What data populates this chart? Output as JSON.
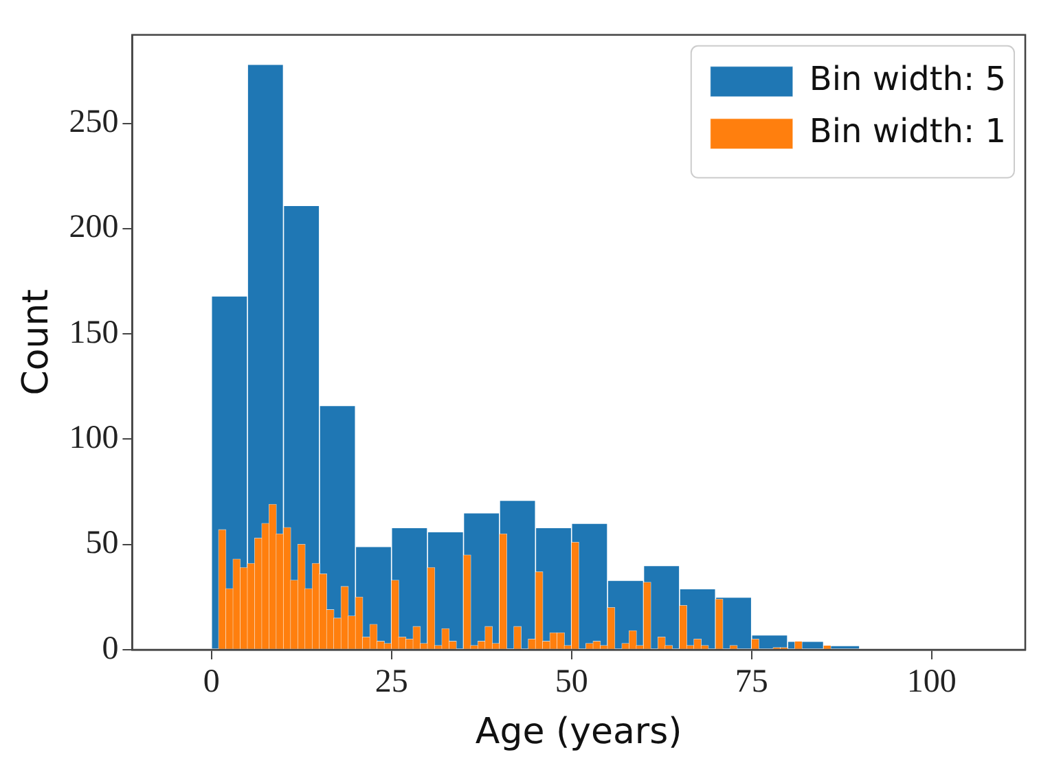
{
  "chart_data": {
    "type": "bar",
    "xlabel": "Age (years)",
    "ylabel": "Count",
    "xlim": [
      -11,
      113
    ],
    "xticks": [
      0,
      25,
      50,
      75,
      100
    ],
    "ylim": [
      0,
      292
    ],
    "yticks": [
      0,
      50,
      100,
      150,
      200,
      250
    ],
    "grid": false,
    "legend": "top right",
    "series": [
      {
        "name": "Bin width: 5",
        "color": "#1f77b4",
        "x": [
          2.5,
          7.5,
          12.5,
          17.5,
          22.5,
          27.5,
          32.5,
          37.5,
          42.5,
          47.5,
          52.5,
          57.5,
          62.5,
          67.5,
          72.5,
          77.5,
          82.5,
          87.5
        ],
        "values": [
          168,
          278,
          211,
          116,
          49,
          58,
          56,
          65,
          71,
          58,
          60,
          33,
          40,
          29,
          25,
          7,
          4,
          2
        ]
      },
      {
        "name": "Bin width: 1",
        "color": "#ff7f0e",
        "x": [
          0.5,
          1.5,
          2.5,
          3.5,
          4.5,
          5.5,
          6.5,
          7.5,
          8.5,
          9.5,
          10.5,
          11.5,
          12.5,
          13.5,
          14.5,
          15.5,
          16.5,
          17.5,
          18.5,
          19.5,
          20.5,
          21.5,
          22.5,
          23.5,
          24.5,
          25.5,
          26.5,
          27.5,
          28.5,
          29.5,
          30.5,
          31.5,
          32.5,
          33.5,
          34.5,
          35.5,
          36.5,
          37.5,
          38.5,
          39.5,
          40.5,
          41.5,
          42.5,
          43.5,
          44.5,
          45.5,
          46.5,
          47.5,
          48.5,
          49.5,
          50.5,
          51.5,
          52.5,
          53.5,
          54.5,
          55.5,
          56.5,
          57.5,
          58.5,
          59.5,
          60.5,
          61.5,
          62.5,
          63.5,
          64.5,
          65.5,
          66.5,
          67.5,
          68.5,
          69.5,
          70.5,
          71.5,
          72.5,
          73.5,
          74.5,
          75.5,
          76.5,
          77.5,
          78.5,
          79.5,
          80.5,
          81.5,
          82.5,
          83.5,
          84.5,
          85.5
        ],
        "values": [
          0,
          57,
          29,
          43,
          39,
          41,
          53,
          60,
          69,
          55,
          58,
          33,
          50,
          29,
          41,
          36,
          19,
          15,
          30,
          16,
          25,
          6,
          12,
          4,
          3,
          33,
          6,
          5,
          11,
          3,
          39,
          2,
          10,
          4,
          0,
          45,
          2,
          4,
          11,
          3,
          55,
          0,
          11,
          0,
          5,
          37,
          4,
          8,
          8,
          2,
          51,
          0,
          3,
          4,
          2,
          20,
          0,
          3,
          9,
          2,
          32,
          0,
          6,
          2,
          0,
          21,
          2,
          5,
          2,
          0,
          24,
          0,
          2,
          0,
          0,
          5,
          0,
          0,
          1,
          1,
          0,
          4,
          0,
          0,
          0,
          2
        ]
      }
    ]
  }
}
